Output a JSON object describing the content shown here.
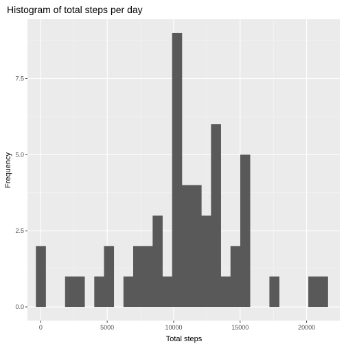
{
  "chart_data": {
    "type": "bar",
    "title": "Histogram of total steps per day",
    "xlabel": "Total steps",
    "ylabel": "Frequency",
    "xlim": [
      -1000,
      22500
    ],
    "ylim": [
      -0.45,
      9.45
    ],
    "x_ticks": [
      0,
      5000,
      10000,
      15000,
      20000
    ],
    "x_tick_labels": [
      "0",
      "5000",
      "10000",
      "15000",
      "20000"
    ],
    "y_ticks": [
      0,
      2.5,
      5,
      7.5
    ],
    "y_tick_labels": [
      "0.0",
      "2.5",
      "5.0",
      "7.5"
    ],
    "x_minor_ticks": [
      2500,
      7500,
      12500,
      17500
    ],
    "y_minor_ticks": [
      1.25,
      3.75,
      6.25,
      8.75
    ],
    "grid": true,
    "legend": "none",
    "bins": [
      {
        "x0": -366,
        "x1": 366,
        "count": 2
      },
      {
        "x0": 366,
        "x1": 1098,
        "count": 0
      },
      {
        "x0": 1098,
        "x1": 1830,
        "count": 0
      },
      {
        "x0": 1830,
        "x1": 2562,
        "count": 1
      },
      {
        "x0": 2562,
        "x1": 3294,
        "count": 1
      },
      {
        "x0": 3294,
        "x1": 4026,
        "count": 0
      },
      {
        "x0": 4026,
        "x1": 4758,
        "count": 1
      },
      {
        "x0": 4758,
        "x1": 5490,
        "count": 2
      },
      {
        "x0": 5490,
        "x1": 6222,
        "count": 0
      },
      {
        "x0": 6222,
        "x1": 6954,
        "count": 1
      },
      {
        "x0": 6954,
        "x1": 7686,
        "count": 2
      },
      {
        "x0": 7686,
        "x1": 8418,
        "count": 2
      },
      {
        "x0": 8418,
        "x1": 9150,
        "count": 3
      },
      {
        "x0": 9150,
        "x1": 9882,
        "count": 1
      },
      {
        "x0": 9882,
        "x1": 10614,
        "count": 9
      },
      {
        "x0": 10614,
        "x1": 11346,
        "count": 4
      },
      {
        "x0": 11346,
        "x1": 12078,
        "count": 4
      },
      {
        "x0": 12078,
        "x1": 12810,
        "count": 3
      },
      {
        "x0": 12810,
        "x1": 13542,
        "count": 6
      },
      {
        "x0": 13542,
        "x1": 14274,
        "count": 1
      },
      {
        "x0": 14274,
        "x1": 15006,
        "count": 2
      },
      {
        "x0": 15006,
        "x1": 15738,
        "count": 5
      },
      {
        "x0": 15738,
        "x1": 16470,
        "count": 0
      },
      {
        "x0": 16470,
        "x1": 17202,
        "count": 0
      },
      {
        "x0": 17202,
        "x1": 17934,
        "count": 1
      },
      {
        "x0": 17934,
        "x1": 18666,
        "count": 0
      },
      {
        "x0": 18666,
        "x1": 19398,
        "count": 0
      },
      {
        "x0": 19398,
        "x1": 20130,
        "count": 0
      },
      {
        "x0": 20130,
        "x1": 20862,
        "count": 1
      },
      {
        "x0": 20862,
        "x1": 21594,
        "count": 1
      }
    ],
    "colors": {
      "bar": "#595959",
      "panel": "#ebebeb",
      "grid_major": "#ffffff",
      "grid_minor": "#f5f5f5",
      "tick_text": "#4d4d4d",
      "axis_tick": "#333333"
    }
  }
}
